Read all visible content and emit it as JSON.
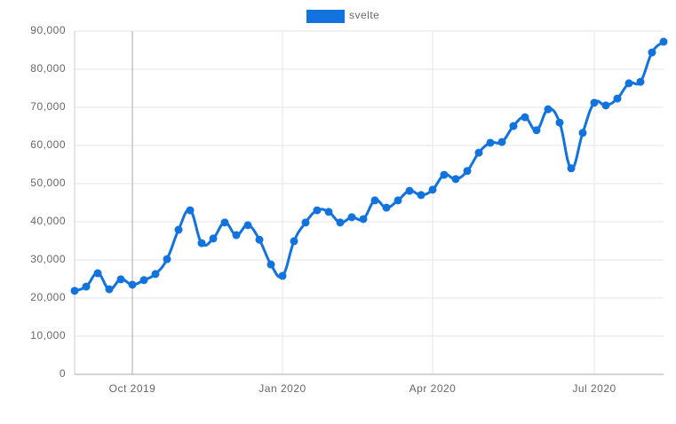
{
  "chart_data": {
    "type": "line",
    "categories": [
      null,
      null,
      null,
      null,
      null,
      "Oct 2019",
      null,
      null,
      null,
      null,
      null,
      null,
      null,
      null,
      null,
      null,
      null,
      null,
      "Jan 2020",
      null,
      null,
      null,
      null,
      null,
      null,
      null,
      null,
      null,
      null,
      null,
      null,
      "Apr 2020",
      null,
      null,
      null,
      null,
      null,
      null,
      null,
      null,
      null,
      null,
      null,
      null,
      null,
      "Jul 2020",
      null,
      null,
      null,
      null,
      null,
      null
    ],
    "series": [
      {
        "name": "svelte",
        "color": "#1273de",
        "values": [
          21900,
          23000,
          26500,
          22300,
          24900,
          23500,
          24700,
          26300,
          30200,
          37900,
          43000,
          34400,
          35600,
          39800,
          36500,
          39100,
          35300,
          28800,
          25800,
          34900,
          39800,
          43000,
          42600,
          39800,
          41200,
          40700,
          45600,
          43700,
          45600,
          48100,
          47000,
          48400,
          52300,
          51200,
          53300,
          58100,
          60700,
          60900,
          65100,
          67400,
          64000,
          69500,
          66000,
          54000,
          63300,
          71200,
          70500,
          72300,
          76300,
          76700,
          84400,
          87200
        ]
      }
    ],
    "ylim": [
      0,
      90000
    ],
    "yticks": [
      0,
      {
        "value": 10000,
        "label": "10,000"
      },
      {
        "value": 20000,
        "label": "20,000"
      },
      {
        "value": 30000,
        "label": "30,000"
      },
      {
        "value": 40000,
        "label": "40,000"
      },
      {
        "value": 50000,
        "label": "50,000"
      },
      {
        "value": 60000,
        "label": "60,000"
      },
      {
        "value": 70000,
        "label": "70,000"
      },
      {
        "value": 80000,
        "label": "80,000"
      },
      {
        "value": 90000,
        "label": "90,000"
      }
    ],
    "grid": true,
    "legend": "top"
  }
}
